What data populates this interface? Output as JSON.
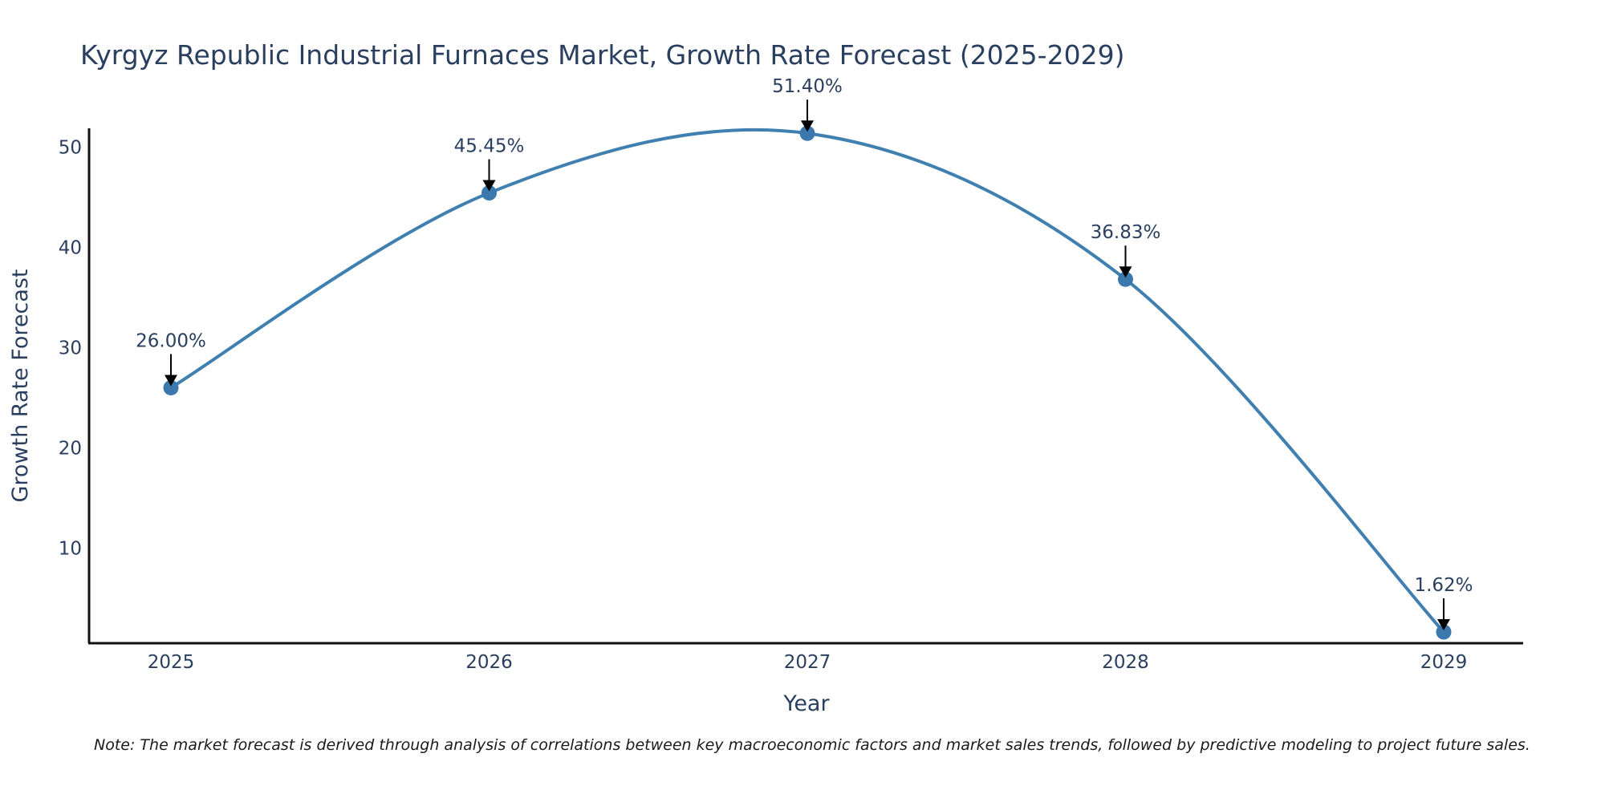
{
  "chart_data": {
    "type": "line",
    "title": "Kyrgyz Republic Industrial Furnaces Market, Growth Rate Forecast (2025-2029)",
    "xlabel": "Year",
    "ylabel": "Growth Rate Forecast",
    "categories": [
      "2025",
      "2026",
      "2027",
      "2028",
      "2029"
    ],
    "series": [
      {
        "name": "Growth Rate Forecast",
        "values": [
          26.0,
          45.45,
          51.4,
          36.83,
          1.62
        ]
      }
    ],
    "data_labels": [
      "26.00%",
      "45.45%",
      "51.40%",
      "36.83%",
      "1.62%"
    ],
    "y_ticks": [
      10,
      20,
      30,
      40,
      50
    ],
    "ylim": [
      0.5,
      51.9
    ],
    "grid": false,
    "line_color": "#4080b0",
    "marker_color": "#3a78ae",
    "arrow_color": "#000000"
  },
  "note": "Note: The market forecast is derived through analysis of correlations between key macroeconomic factors and market sales trends, followed by predictive modeling to project future sales."
}
